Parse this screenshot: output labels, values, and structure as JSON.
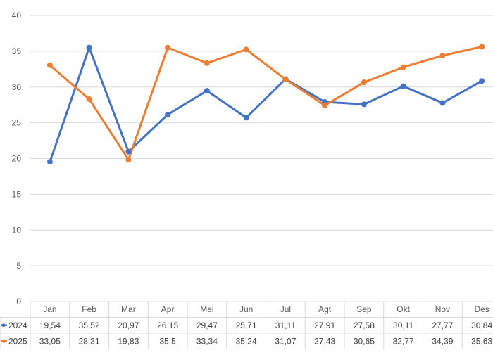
{
  "chart_data": {
    "type": "line",
    "categories": [
      "Jan",
      "Feb",
      "Mar",
      "Apr",
      "Mei",
      "Jun",
      "Jul",
      "Agt",
      "Sep",
      "Okt",
      "Nov",
      "Des"
    ],
    "ylim": [
      0,
      40
    ],
    "yticks": [
      "0",
      "5",
      "10",
      "15",
      "20",
      "25",
      "30",
      "35",
      "40"
    ],
    "grid": true,
    "legend": "data-table",
    "series": [
      {
        "name": "2024",
        "color": "#4472C4",
        "values": [
          19.54,
          35.52,
          20.97,
          26.15,
          29.47,
          25.71,
          31.11,
          27.91,
          27.58,
          30.11,
          27.77,
          30.84
        ],
        "labels": [
          "19,54",
          "35,52",
          "20,97",
          "26,15",
          "29,47",
          "25,71",
          "31,11",
          "27,91",
          "27,58",
          "30,11",
          "27,77",
          "30,84"
        ]
      },
      {
        "name": "2025",
        "color": "#ED7D31",
        "values": [
          33.05,
          28.31,
          19.83,
          35.5,
          33.34,
          35.24,
          31.07,
          27.43,
          30.65,
          32.77,
          34.39,
          35.63
        ],
        "labels": [
          "33,05",
          "28,31",
          "19,83",
          "35,5",
          "33,34",
          "35,24",
          "31,07",
          "27,43",
          "30,65",
          "32,77",
          "34,39",
          "35,63"
        ]
      }
    ]
  }
}
